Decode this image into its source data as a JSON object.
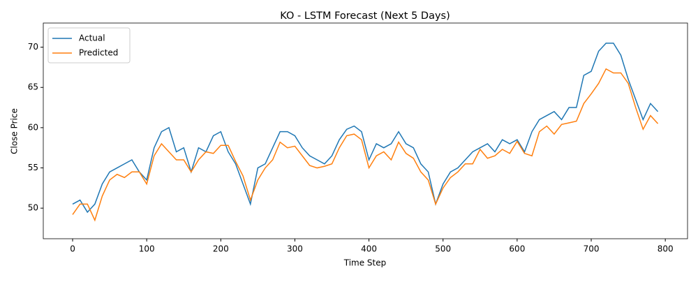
{
  "chart_data": {
    "type": "line",
    "title": "KO - LSTM Forecast (Next 5 Days)",
    "x_label": "Time Step",
    "y_label": "Close Price",
    "x": [
      0,
      10,
      20,
      30,
      40,
      50,
      60,
      70,
      80,
      90,
      100,
      110,
      120,
      130,
      140,
      150,
      160,
      170,
      180,
      190,
      200,
      210,
      220,
      230,
      240,
      250,
      260,
      270,
      280,
      290,
      300,
      310,
      320,
      330,
      340,
      350,
      360,
      370,
      380,
      390,
      400,
      410,
      420,
      430,
      440,
      450,
      460,
      470,
      480,
      490,
      500,
      510,
      520,
      530,
      540,
      550,
      560,
      570,
      580,
      590,
      600,
      610,
      620,
      630,
      640,
      650,
      660,
      670,
      680,
      690,
      700,
      710,
      720,
      730,
      740,
      750,
      760,
      770,
      780,
      790
    ],
    "series": [
      {
        "name": "Actual",
        "color": "#1f77b4",
        "values": [
          50.5,
          51.0,
          49.5,
          50.5,
          53.0,
          54.5,
          55.0,
          55.5,
          56.0,
          54.5,
          53.5,
          57.5,
          59.5,
          60.0,
          57.0,
          57.5,
          54.5,
          57.5,
          57.0,
          59.0,
          59.5,
          57.0,
          55.5,
          53.0,
          50.5,
          55.0,
          55.5,
          57.5,
          59.5,
          59.5,
          59.0,
          57.5,
          56.5,
          56.0,
          55.5,
          56.5,
          58.5,
          59.8,
          60.2,
          59.5,
          56.0,
          58.0,
          57.5,
          58.0,
          59.5,
          58.0,
          57.5,
          55.5,
          54.5,
          50.5,
          53.0,
          54.5,
          55.0,
          56.0,
          57.0,
          57.5,
          58.0,
          57.0,
          58.5,
          58.0,
          58.5,
          57.0,
          59.5,
          61.0,
          61.5,
          62.0,
          61.0,
          62.5,
          62.5,
          66.5,
          67.0,
          69.5,
          70.5,
          70.5,
          69.0,
          66.0,
          63.5,
          61.0,
          63.0,
          62.0
        ]
      },
      {
        "name": "Predicted",
        "color": "#ff7f0e",
        "values": [
          49.2,
          50.5,
          50.5,
          48.5,
          51.5,
          53.5,
          54.2,
          53.8,
          54.5,
          54.5,
          53.0,
          56.5,
          58.0,
          57.0,
          56.0,
          56.0,
          54.5,
          56.0,
          57.0,
          56.8,
          57.8,
          57.8,
          55.8,
          54.0,
          51.0,
          53.5,
          55.0,
          56.0,
          58.2,
          57.5,
          57.7,
          56.5,
          55.3,
          55.0,
          55.2,
          55.5,
          57.5,
          59.0,
          59.2,
          58.5,
          55.0,
          56.5,
          57.0,
          56.0,
          58.2,
          56.8,
          56.2,
          54.5,
          53.5,
          50.5,
          52.5,
          53.8,
          54.5,
          55.5,
          55.5,
          57.3,
          56.2,
          56.5,
          57.3,
          56.8,
          58.3,
          56.8,
          56.5,
          59.5,
          60.2,
          59.2,
          60.4,
          60.6,
          60.8,
          63.0,
          64.2,
          65.5,
          67.3,
          66.8,
          66.8,
          65.5,
          62.5,
          59.8,
          61.5,
          60.5
        ]
      }
    ],
    "xlim": [
      -39.6,
      830
    ],
    "ylim": [
      46.2,
      73.0
    ],
    "xticks": [
      0,
      100,
      200,
      300,
      400,
      500,
      600,
      700,
      800
    ],
    "yticks": [
      50,
      55,
      60,
      65,
      70
    ],
    "legend": "upper left"
  }
}
